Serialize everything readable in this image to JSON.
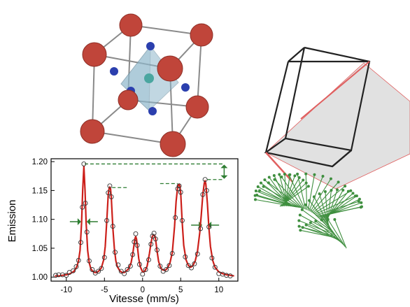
{
  "colors": {
    "atom_large": "#c0453a",
    "atom_small": "#2b3fae",
    "octahedron": "#8fb8cc",
    "cube_edge": "#8a8a8a",
    "fit_line": "#cc1f1a",
    "points": "#333333",
    "annotation": "#2e7d32",
    "projection_fill": "#d9d9d9",
    "projection_edge": "#e06060",
    "cube_outline": "#222222",
    "helix_arrow": "#3f8f3f"
  },
  "icons": {
    "crystal": "cubic-crystal-structure-icon",
    "helix": "spin-helix-vector-icon"
  },
  "chart_data": {
    "type": "scatter",
    "title": "",
    "xlabel": "Vitesse (mm/s)",
    "ylabel": "Emission",
    "xlim": [
      -12,
      12.5
    ],
    "ylim": [
      0.993,
      1.205
    ],
    "xticks": [
      -10,
      -5,
      0,
      5,
      10
    ],
    "yticks": [
      1.0,
      1.05,
      1.1,
      1.15,
      1.2
    ],
    "ytick_labels": [
      "1.00",
      "1.05",
      "1.10",
      "1.15",
      "1.20"
    ],
    "grid": false,
    "legend": "none",
    "peaks": [
      {
        "center": -7.7,
        "amplitude": 0.192,
        "hwhm": 0.45
      },
      {
        "center": -4.3,
        "amplitude": 0.153,
        "hwhm": 0.45
      },
      {
        "center": -0.9,
        "amplitude": 0.069,
        "hwhm": 0.45
      },
      {
        "center": 1.5,
        "amplitude": 0.071,
        "hwhm": 0.45
      },
      {
        "center": 4.8,
        "amplitude": 0.158,
        "hwhm": 0.45
      },
      {
        "center": 8.2,
        "amplitude": 0.165,
        "hwhm": 0.45
      }
    ],
    "series": [
      {
        "type": "line",
        "x": [
          -11.5,
          -11,
          -10.5,
          -10,
          -9.5,
          -9,
          -8.8,
          -8.6,
          -8.4,
          -8.2,
          -8,
          -7.85,
          -7.7,
          -7.55,
          -7.4,
          -7.2,
          -7,
          -6.8,
          -6.6,
          -6.3,
          -6,
          -5.7,
          -5.4,
          -5.1,
          -4.9,
          -4.7,
          -4.5,
          -4.4,
          -4.3,
          -4.2,
          -4.1,
          -3.9,
          -3.7,
          -3.5,
          -3.3,
          -3,
          -2.7,
          -2.4,
          -2.1,
          -1.8,
          -1.5,
          -1.3,
          -1.1,
          -1,
          -0.9,
          -0.8,
          -0.7,
          -0.5,
          -0.3,
          0,
          0.3,
          0.6,
          0.9,
          1.1,
          1.3,
          1.4,
          1.5,
          1.6,
          1.7,
          1.9,
          2.1,
          2.4,
          2.7,
          3,
          3.3,
          3.6,
          3.9,
          4.2,
          4.4,
          4.6,
          4.7,
          4.8,
          4.9,
          5,
          5.2,
          5.4,
          5.7,
          6,
          6.3,
          6.6,
          6.9,
          7.2,
          7.5,
          7.7,
          7.9,
          8.1,
          8.2,
          8.3,
          8.5,
          8.7,
          8.9,
          9.2,
          9.5,
          10,
          10.5,
          11,
          11.5,
          12
        ],
        "y": [
          1.002,
          1.002,
          1.003,
          1.004,
          1.006,
          1.01,
          1.014,
          1.019,
          1.028,
          1.046,
          1.094,
          1.151,
          1.192,
          1.151,
          1.094,
          1.046,
          1.025,
          1.015,
          1.011,
          1.008,
          1.008,
          1.011,
          1.016,
          1.03,
          1.053,
          1.097,
          1.143,
          1.153,
          1.156,
          1.153,
          1.137,
          1.085,
          1.049,
          1.028,
          1.018,
          1.011,
          1.008,
          1.008,
          1.011,
          1.015,
          1.025,
          1.039,
          1.058,
          1.067,
          1.07,
          1.066,
          1.056,
          1.032,
          1.018,
          1.009,
          1.01,
          1.019,
          1.041,
          1.059,
          1.071,
          1.072,
          1.073,
          1.072,
          1.066,
          1.045,
          1.027,
          1.015,
          1.012,
          1.012,
          1.016,
          1.025,
          1.043,
          1.088,
          1.131,
          1.156,
          1.16,
          1.161,
          1.157,
          1.145,
          1.095,
          1.055,
          1.03,
          1.02,
          1.017,
          1.02,
          1.028,
          1.044,
          1.077,
          1.108,
          1.143,
          1.163,
          1.167,
          1.161,
          1.128,
          1.085,
          1.053,
          1.029,
          1.017,
          1.009,
          1.006,
          1.004,
          1.003,
          1.002
        ]
      },
      {
        "type": "scatter",
        "x": [
          -11.4,
          -11,
          -10.5,
          -10,
          -9.6,
          -9.1,
          -8.7,
          -8.4,
          -8.1,
          -7.9,
          -7.7,
          -7.5,
          -7.3,
          -7,
          -6.6,
          -6.2,
          -5.8,
          -5.4,
          -5,
          -4.7,
          -4.5,
          -4.3,
          -4.1,
          -3.9,
          -3.6,
          -3.2,
          -2.8,
          -2.4,
          -2,
          -1.6,
          -1.3,
          -1.1,
          -0.9,
          -0.7,
          -0.4,
          0,
          0.4,
          0.8,
          1.1,
          1.3,
          1.5,
          1.7,
          1.9,
          2.3,
          2.7,
          3.1,
          3.5,
          3.9,
          4.3,
          4.6,
          4.8,
          5,
          5.2,
          5.6,
          6,
          6.4,
          6.8,
          7.2,
          7.6,
          7.9,
          8.2,
          8.4,
          8.7,
          9.1,
          9.5,
          10,
          10.5,
          11,
          11.5
        ],
        "y": [
          1.003,
          1.004,
          1.004,
          1.003,
          1.008,
          1.011,
          1.018,
          1.029,
          1.06,
          1.121,
          1.196,
          1.128,
          1.078,
          1.028,
          1.013,
          1.007,
          1.01,
          1.015,
          1.034,
          1.098,
          1.146,
          1.158,
          1.139,
          1.088,
          1.043,
          1.021,
          1.01,
          1.006,
          1.013,
          1.019,
          1.039,
          1.061,
          1.075,
          1.055,
          1.022,
          1.005,
          1.013,
          1.03,
          1.057,
          1.071,
          1.076,
          1.066,
          1.047,
          1.019,
          1.01,
          1.013,
          1.02,
          1.041,
          1.103,
          1.153,
          1.158,
          1.147,
          1.098,
          1.035,
          1.02,
          1.016,
          1.023,
          1.04,
          1.084,
          1.143,
          1.169,
          1.15,
          1.087,
          1.033,
          1.017,
          1.006,
          1.005,
          1.003,
          1.002
        ]
      }
    ],
    "annotations": [
      {
        "type": "dashed-level",
        "y": 1.196,
        "x_from": -7.6,
        "x_to": 10.7
      },
      {
        "type": "dashed-level",
        "y": 1.155,
        "x_from": -4.0,
        "x_to": -1.8
      },
      {
        "type": "dashed-level",
        "y": 1.162,
        "x_from": 2.3,
        "x_to": 4.6
      },
      {
        "type": "dashed-level",
        "y": 1.169,
        "x_from": 8.5,
        "x_to": 10.7
      },
      {
        "type": "double-arrow",
        "x": 10.7,
        "y_from": 1.169,
        "y_to": 1.196
      },
      {
        "type": "fwhm-arrows",
        "center": -7.7,
        "y": 1.096
      },
      {
        "type": "fwhm-arrows",
        "center": 8.2,
        "y": 1.09
      }
    ]
  }
}
